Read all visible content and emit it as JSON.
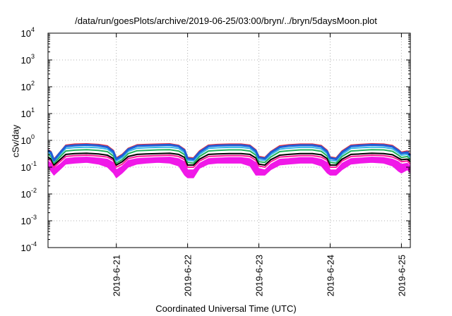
{
  "chart_data": {
    "type": "line",
    "title": "/data/run/goesPlots/archive/2019-06-25/03:00/bryn/../bryn/5daysMoon.plot",
    "xlabel": "Coordinated Universal Time (UTC)",
    "ylabel": "cSv/day",
    "yscale": "log",
    "ylim": [
      0.0001,
      10000
    ],
    "yticks": [
      {
        "value": 0.0001,
        "base": "10",
        "exp": "-4"
      },
      {
        "value": 0.001,
        "base": "10",
        "exp": "-3"
      },
      {
        "value": 0.01,
        "base": "10",
        "exp": "-2"
      },
      {
        "value": 0.1,
        "base": "10",
        "exp": "-1"
      },
      {
        "value": 1,
        "base": "10",
        "exp": "0"
      },
      {
        "value": 10,
        "base": "10",
        "exp": "1"
      },
      {
        "value": 100,
        "base": "10",
        "exp": "2"
      },
      {
        "value": 1000,
        "base": "10",
        "exp": "3"
      },
      {
        "value": 10000,
        "base": "10",
        "exp": "4"
      }
    ],
    "xlim": [
      "2019-06-20T01:00",
      "2019-06-25T03:00"
    ],
    "xticks": [
      {
        "date": "2019-06-21T00:00",
        "label": "2019-6-21"
      },
      {
        "date": "2019-06-22T00:00",
        "label": "2019-6-22"
      },
      {
        "date": "2019-06-23T00:00",
        "label": "2019-6-23"
      },
      {
        "date": "2019-06-24T00:00",
        "label": "2019-6-24"
      },
      {
        "date": "2019-06-25T00:00",
        "label": "2019-6-25"
      }
    ],
    "grid": true,
    "x": [
      "2019-06-20T01:00",
      "2019-06-20T02:00",
      "2019-06-20T03:00",
      "2019-06-20T05:00",
      "2019-06-20T07:00",
      "2019-06-20T10:00",
      "2019-06-20T14:00",
      "2019-06-20T18:00",
      "2019-06-20T21:00",
      "2019-06-20T23:00",
      "2019-06-21T00:00",
      "2019-06-21T02:00",
      "2019-06-21T04:00",
      "2019-06-21T07:00",
      "2019-06-21T10:00",
      "2019-06-21T14:00",
      "2019-06-21T18:00",
      "2019-06-21T21:00",
      "2019-06-21T23:00",
      "2019-06-22T00:00",
      "2019-06-22T02:00",
      "2019-06-22T04:00",
      "2019-06-22T07:00",
      "2019-06-22T10:00",
      "2019-06-22T14:00",
      "2019-06-22T18:00",
      "2019-06-22T21:00",
      "2019-06-22T23:00",
      "2019-06-23T00:00",
      "2019-06-23T02:00",
      "2019-06-23T04:00",
      "2019-06-23T07:00",
      "2019-06-23T10:00",
      "2019-06-23T14:00",
      "2019-06-23T18:00",
      "2019-06-23T21:00",
      "2019-06-23T23:00",
      "2019-06-24T00:00",
      "2019-06-24T02:00",
      "2019-06-24T04:00",
      "2019-06-24T07:00",
      "2019-06-24T10:00",
      "2019-06-24T14:00",
      "2019-06-24T18:00",
      "2019-06-24T21:00",
      "2019-06-24T23:00",
      "2019-06-25T00:00",
      "2019-06-25T02:00",
      "2019-06-25T03:00"
    ],
    "series": [
      {
        "color": "#e8263a",
        "values": [
          0.45,
          0.38,
          0.2,
          0.36,
          0.66,
          0.72,
          0.74,
          0.7,
          0.62,
          0.42,
          0.22,
          0.3,
          0.5,
          0.68,
          0.7,
          0.72,
          0.74,
          0.65,
          0.46,
          0.23,
          0.22,
          0.4,
          0.66,
          0.7,
          0.72,
          0.72,
          0.66,
          0.44,
          0.25,
          0.23,
          0.38,
          0.62,
          0.68,
          0.72,
          0.72,
          0.64,
          0.42,
          0.24,
          0.22,
          0.4,
          0.66,
          0.7,
          0.74,
          0.72,
          0.64,
          0.45,
          0.36,
          0.4,
          0.3
        ]
      },
      {
        "color": "#1e5fd8",
        "values": [
          0.42,
          0.35,
          0.18,
          0.34,
          0.6,
          0.65,
          0.68,
          0.64,
          0.56,
          0.38,
          0.2,
          0.27,
          0.46,
          0.62,
          0.64,
          0.66,
          0.68,
          0.6,
          0.42,
          0.21,
          0.2,
          0.36,
          0.6,
          0.64,
          0.66,
          0.66,
          0.6,
          0.4,
          0.23,
          0.21,
          0.35,
          0.56,
          0.62,
          0.66,
          0.66,
          0.58,
          0.38,
          0.22,
          0.2,
          0.36,
          0.6,
          0.64,
          0.68,
          0.66,
          0.58,
          0.41,
          0.33,
          0.36,
          0.27
        ]
      },
      {
        "color": "#35b8e6",
        "values": [
          0.36,
          0.3,
          0.16,
          0.29,
          0.5,
          0.54,
          0.56,
          0.53,
          0.47,
          0.32,
          0.17,
          0.23,
          0.39,
          0.51,
          0.53,
          0.55,
          0.56,
          0.5,
          0.35,
          0.18,
          0.17,
          0.3,
          0.5,
          0.53,
          0.55,
          0.55,
          0.5,
          0.34,
          0.19,
          0.18,
          0.29,
          0.47,
          0.51,
          0.55,
          0.55,
          0.48,
          0.32,
          0.18,
          0.17,
          0.3,
          0.5,
          0.53,
          0.56,
          0.55,
          0.48,
          0.34,
          0.28,
          0.3,
          0.23
        ]
      },
      {
        "color": "#22b35a",
        "values": [
          0.3,
          0.25,
          0.14,
          0.24,
          0.4,
          0.43,
          0.45,
          0.42,
          0.38,
          0.26,
          0.14,
          0.19,
          0.32,
          0.41,
          0.42,
          0.44,
          0.45,
          0.4,
          0.29,
          0.15,
          0.14,
          0.25,
          0.4,
          0.42,
          0.44,
          0.44,
          0.4,
          0.28,
          0.16,
          0.15,
          0.24,
          0.38,
          0.41,
          0.44,
          0.44,
          0.39,
          0.26,
          0.15,
          0.14,
          0.25,
          0.4,
          0.42,
          0.45,
          0.44,
          0.39,
          0.28,
          0.23,
          0.25,
          0.19
        ]
      },
      {
        "color": "#000000",
        "values": [
          0.24,
          0.2,
          0.12,
          0.19,
          0.3,
          0.32,
          0.33,
          0.31,
          0.28,
          0.21,
          0.12,
          0.16,
          0.25,
          0.3,
          0.31,
          0.32,
          0.33,
          0.3,
          0.23,
          0.12,
          0.12,
          0.2,
          0.3,
          0.31,
          0.32,
          0.32,
          0.3,
          0.22,
          0.13,
          0.12,
          0.19,
          0.28,
          0.3,
          0.32,
          0.32,
          0.29,
          0.21,
          0.12,
          0.12,
          0.2,
          0.3,
          0.31,
          0.33,
          0.32,
          0.29,
          0.22,
          0.19,
          0.2,
          0.16
        ]
      },
      {
        "color": "#ff1a99",
        "values": [
          0.2,
          0.17,
          0.1,
          0.16,
          0.25,
          0.27,
          0.28,
          0.26,
          0.24,
          0.18,
          0.1,
          0.13,
          0.21,
          0.25,
          0.26,
          0.27,
          0.28,
          0.25,
          0.19,
          0.1,
          0.1,
          0.17,
          0.25,
          0.26,
          0.27,
          0.27,
          0.25,
          0.18,
          0.11,
          0.1,
          0.16,
          0.24,
          0.25,
          0.27,
          0.27,
          0.24,
          0.18,
          0.1,
          0.1,
          0.17,
          0.25,
          0.26,
          0.28,
          0.27,
          0.24,
          0.19,
          0.16,
          0.17,
          0.13
        ]
      }
    ],
    "band": {
      "color": "#f018e8",
      "upper": [
        0.17,
        0.14,
        0.09,
        0.13,
        0.21,
        0.23,
        0.24,
        0.22,
        0.2,
        0.15,
        0.08,
        0.11,
        0.18,
        0.21,
        0.22,
        0.23,
        0.24,
        0.21,
        0.16,
        0.08,
        0.08,
        0.14,
        0.21,
        0.22,
        0.23,
        0.23,
        0.21,
        0.15,
        0.09,
        0.08,
        0.13,
        0.2,
        0.21,
        0.23,
        0.23,
        0.2,
        0.15,
        0.08,
        0.08,
        0.14,
        0.21,
        0.22,
        0.24,
        0.23,
        0.2,
        0.16,
        0.13,
        0.14,
        0.11
      ],
      "lower": [
        0.11,
        0.07,
        0.05,
        0.08,
        0.13,
        0.14,
        0.15,
        0.13,
        0.1,
        0.06,
        0.04,
        0.06,
        0.1,
        0.13,
        0.14,
        0.15,
        0.14,
        0.11,
        0.05,
        0.04,
        0.04,
        0.09,
        0.13,
        0.14,
        0.14,
        0.14,
        0.11,
        0.05,
        0.05,
        0.05,
        0.08,
        0.12,
        0.13,
        0.14,
        0.14,
        0.11,
        0.06,
        0.05,
        0.05,
        0.08,
        0.13,
        0.14,
        0.15,
        0.14,
        0.11,
        0.07,
        0.06,
        0.08,
        0.06
      ]
    }
  }
}
